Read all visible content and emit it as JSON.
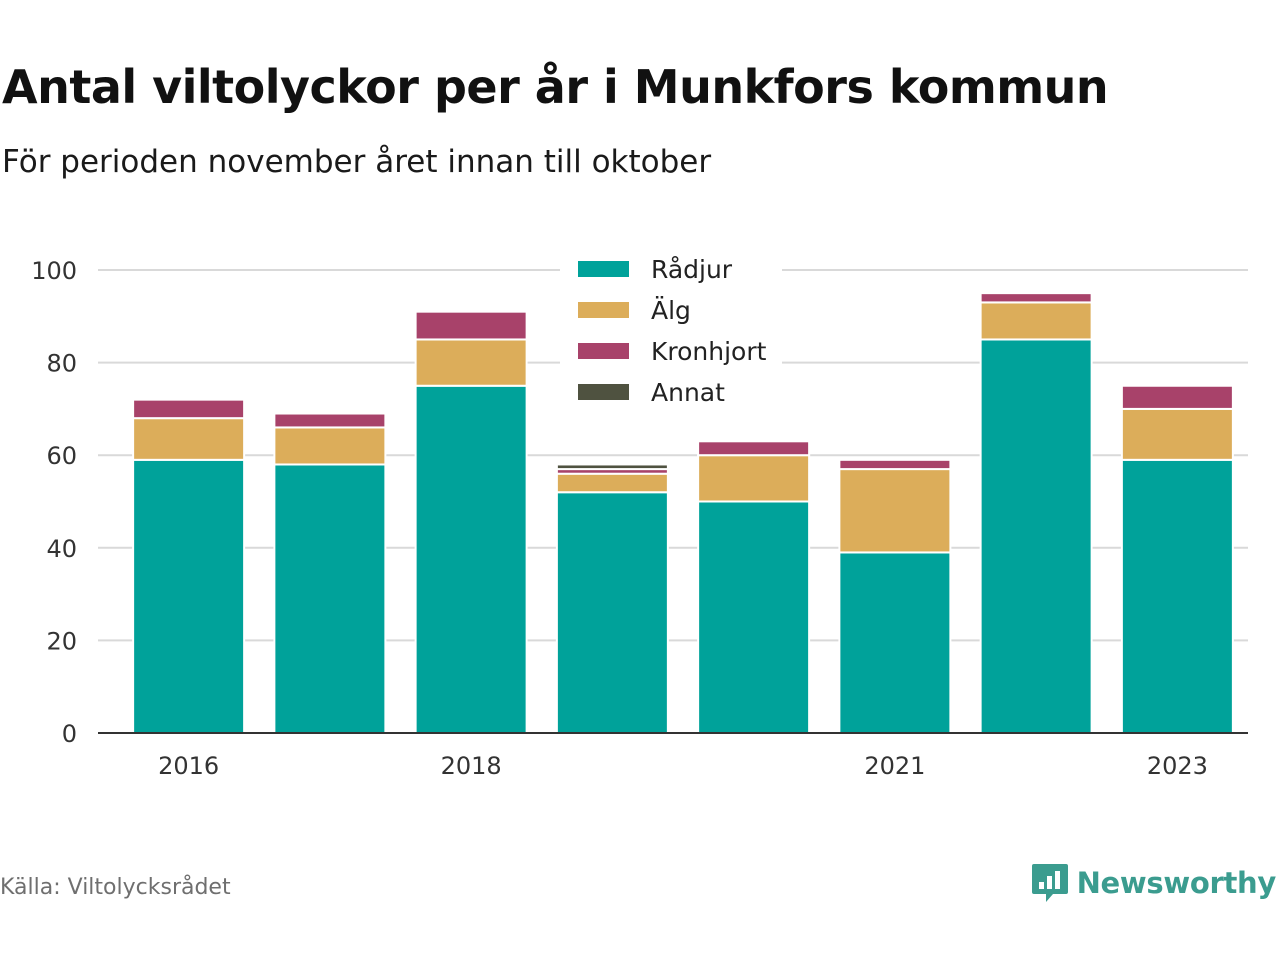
{
  "header": {
    "title": "Antal viltolyckor per år i Munkfors kommun",
    "subtitle": "För perioden november året innan till oktober"
  },
  "footer": {
    "source": "Källa: Viltolycksrådet",
    "brand": "Newsworthy",
    "brand_icon": "newsworthy-logo-icon"
  },
  "chart_data": {
    "type": "bar",
    "stacked": true,
    "categories": [
      "2016",
      "2017",
      "2018",
      "2019",
      "2020",
      "2021",
      "2022",
      "2023"
    ],
    "x_tick_labels": [
      "2016",
      "",
      "2018",
      "",
      "",
      "2021",
      "",
      "2023"
    ],
    "series": [
      {
        "name": "Rådjur",
        "color": "#00a29a",
        "values": [
          59,
          58,
          75,
          52,
          50,
          39,
          85,
          59
        ]
      },
      {
        "name": "Älg",
        "color": "#dcad5a",
        "values": [
          9,
          8,
          10,
          4,
          10,
          18,
          8,
          11
        ]
      },
      {
        "name": "Kronhjort",
        "color": "#a8426a",
        "values": [
          4,
          3,
          6,
          1,
          3,
          2,
          2,
          5
        ]
      },
      {
        "name": "Annat",
        "color": "#4f5240",
        "values": [
          0,
          0,
          0,
          1,
          0,
          0,
          0,
          0
        ]
      }
    ],
    "y_ticks": [
      0,
      20,
      40,
      60,
      80,
      100
    ],
    "ylim": [
      0,
      100
    ],
    "grid": true,
    "legend_position": "top-center"
  }
}
